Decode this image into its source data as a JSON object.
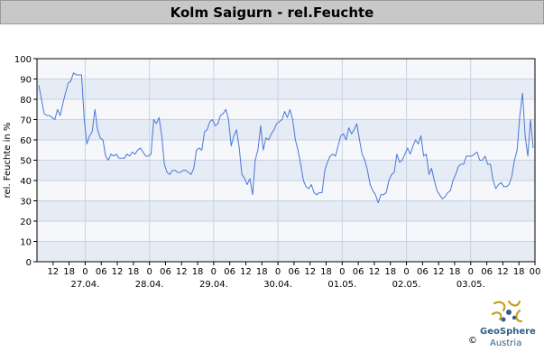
{
  "header": {
    "title": "Kolm Saigurn - rel.Feuchte"
  },
  "chart_data": {
    "type": "line",
    "ylabel": "rel. Feuchte in %",
    "ylim": [
      0,
      100
    ],
    "yticks": [
      0,
      10,
      20,
      30,
      40,
      50,
      60,
      70,
      80,
      90,
      100
    ],
    "x_hour_labels": [
      "12",
      "18",
      "0",
      "06",
      "12",
      "18",
      "0",
      "06",
      "12",
      "18",
      "0",
      "06",
      "12",
      "18",
      "0",
      "06",
      "12",
      "18",
      "0",
      "06",
      "12",
      "18",
      "0",
      "06",
      "12",
      "18",
      "0",
      "06",
      "12",
      "18",
      "00"
    ],
    "x_date_labels": [
      "27.04.",
      "28.04.",
      "29.04.",
      "30.04.",
      "01.05.",
      "02.05.",
      "03.05."
    ],
    "grid": true,
    "line_color": "#4a78d6",
    "series": [
      {
        "values": [
          87,
          80,
          73,
          72,
          72,
          71,
          70,
          75,
          72,
          78,
          83,
          88,
          89,
          93,
          92,
          92,
          92,
          70,
          58,
          62,
          64,
          75,
          65,
          61,
          60,
          52,
          50,
          53,
          52,
          53,
          51,
          51,
          51,
          53,
          52,
          54,
          53,
          55,
          56,
          54,
          52,
          52,
          53,
          70,
          68,
          71,
          62,
          48,
          44,
          43,
          45,
          45,
          44,
          44,
          45,
          45,
          44,
          43,
          46,
          55,
          56,
          55,
          64,
          65,
          69,
          70,
          67,
          68,
          72,
          73,
          75,
          70,
          57,
          62,
          65,
          56,
          43,
          41,
          38,
          41,
          33,
          50,
          55,
          67,
          55,
          61,
          60,
          63,
          65,
          68,
          69,
          70,
          74,
          71,
          75,
          70,
          60,
          55,
          48,
          40,
          37,
          36,
          38,
          34,
          33,
          34,
          34,
          45,
          49,
          52,
          53,
          52,
          57,
          62,
          63,
          60,
          66,
          63,
          65,
          68,
          60,
          53,
          50,
          45,
          38,
          35,
          33,
          29,
          33,
          33,
          34,
          40,
          43,
          44,
          53,
          49,
          50,
          53,
          56,
          53,
          57,
          60,
          58,
          62,
          52,
          53,
          43,
          46,
          40,
          35,
          33,
          31,
          32,
          34,
          35,
          40,
          43,
          47,
          48,
          48,
          52,
          52,
          52,
          53,
          54,
          50,
          50,
          52,
          48,
          48,
          40,
          36,
          38,
          39,
          37,
          37,
          38,
          42,
          50,
          55,
          72,
          83,
          62,
          52,
          70,
          56
        ]
      }
    ]
  },
  "logo": {
    "brand": "GeoSphere",
    "sub": "Austria",
    "copyright": "©"
  }
}
